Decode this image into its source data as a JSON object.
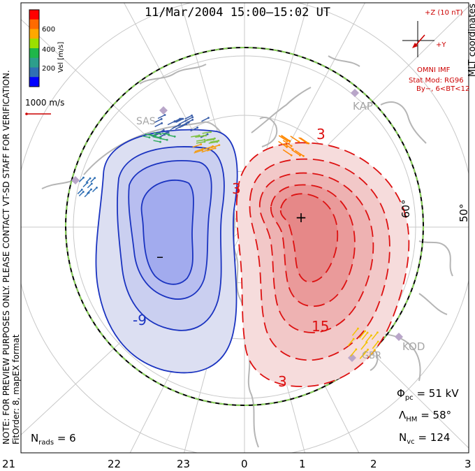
{
  "title": "11/Mar/2004 15:00–15:02 UT",
  "preview_note": "NOTE: FOR PREVIEW PURPOSES ONLY. PLEASE CONTACT VT-SD STAFF FOR VERIFICATION.",
  "fit_note": "FitOrder: 8, mapEX format",
  "coord_label": "MLT coordinates",
  "colorbar": {
    "label": "Vel [m/s]",
    "ticks": [
      "600",
      "400",
      "200"
    ],
    "colors": [
      "#ff0000",
      "#ff6a00",
      "#ffa800",
      "#9be000",
      "#1fb74a",
      "#2d9e8c",
      "#2f6fb4",
      "#0000ff"
    ]
  },
  "ref_vector": "1000 m/s",
  "imf": {
    "bz_label": "+Z (10 nT)",
    "by_label": "+Y",
    "source": "OMNI IMF",
    "model": "Stat Mod: RG96",
    "condition": "By−, 6<BT<12"
  },
  "stats": {
    "phi_pc": "= 51 kV",
    "lambda_hm": "= 58°",
    "n_vc": "= 124",
    "n_rads": "= 6"
  },
  "latitude_labels": [
    "60°",
    "50°"
  ],
  "mlt_labels": [
    "21",
    "22",
    "23",
    "0",
    "1",
    "2",
    "3"
  ],
  "sites": [
    "KAP",
    "KOD",
    "SAS",
    "GBR"
  ],
  "contours": {
    "negative_labels": [
      "-9"
    ],
    "positive_labels": [
      "3",
      "15",
      "3",
      "3"
    ],
    "min_marker": "–",
    "max_marker": "+"
  },
  "colors": {
    "negative_cell": "#1a33c0",
    "positive_cell": "#dd1111",
    "hm_boundary": "#8ad35a",
    "coast": "#b5b5b5",
    "grid": "#c8c8c8"
  }
}
